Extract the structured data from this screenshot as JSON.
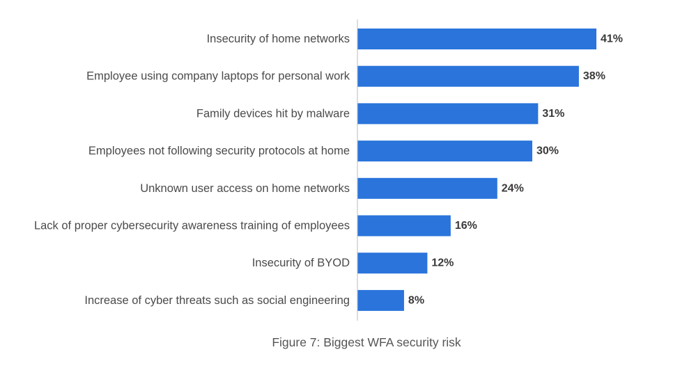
{
  "chart_data": {
    "type": "bar",
    "orientation": "horizontal",
    "categories": [
      "Insecurity of home networks",
      "Employee using company laptops for personal work",
      "Family devices hit by malware",
      "Employees not following security protocols at home",
      "Unknown user access on home networks",
      "Lack of proper cybersecurity awareness training of employees",
      "Insecurity of BYOD",
      "Increase of cyber threats such as social engineering"
    ],
    "values": [
      41,
      38,
      31,
      30,
      24,
      16,
      12,
      8
    ],
    "value_labels": [
      "41%",
      "38%",
      "31%",
      "30%",
      "24%",
      "16%",
      "12%",
      "8%"
    ],
    "unit": "%",
    "xlim": [
      0,
      41
    ],
    "grid": false,
    "bar_color": "#2a74db",
    "axis_color": "#bbbbbb"
  },
  "caption": "Figure 7: Biggest WFA security risk"
}
